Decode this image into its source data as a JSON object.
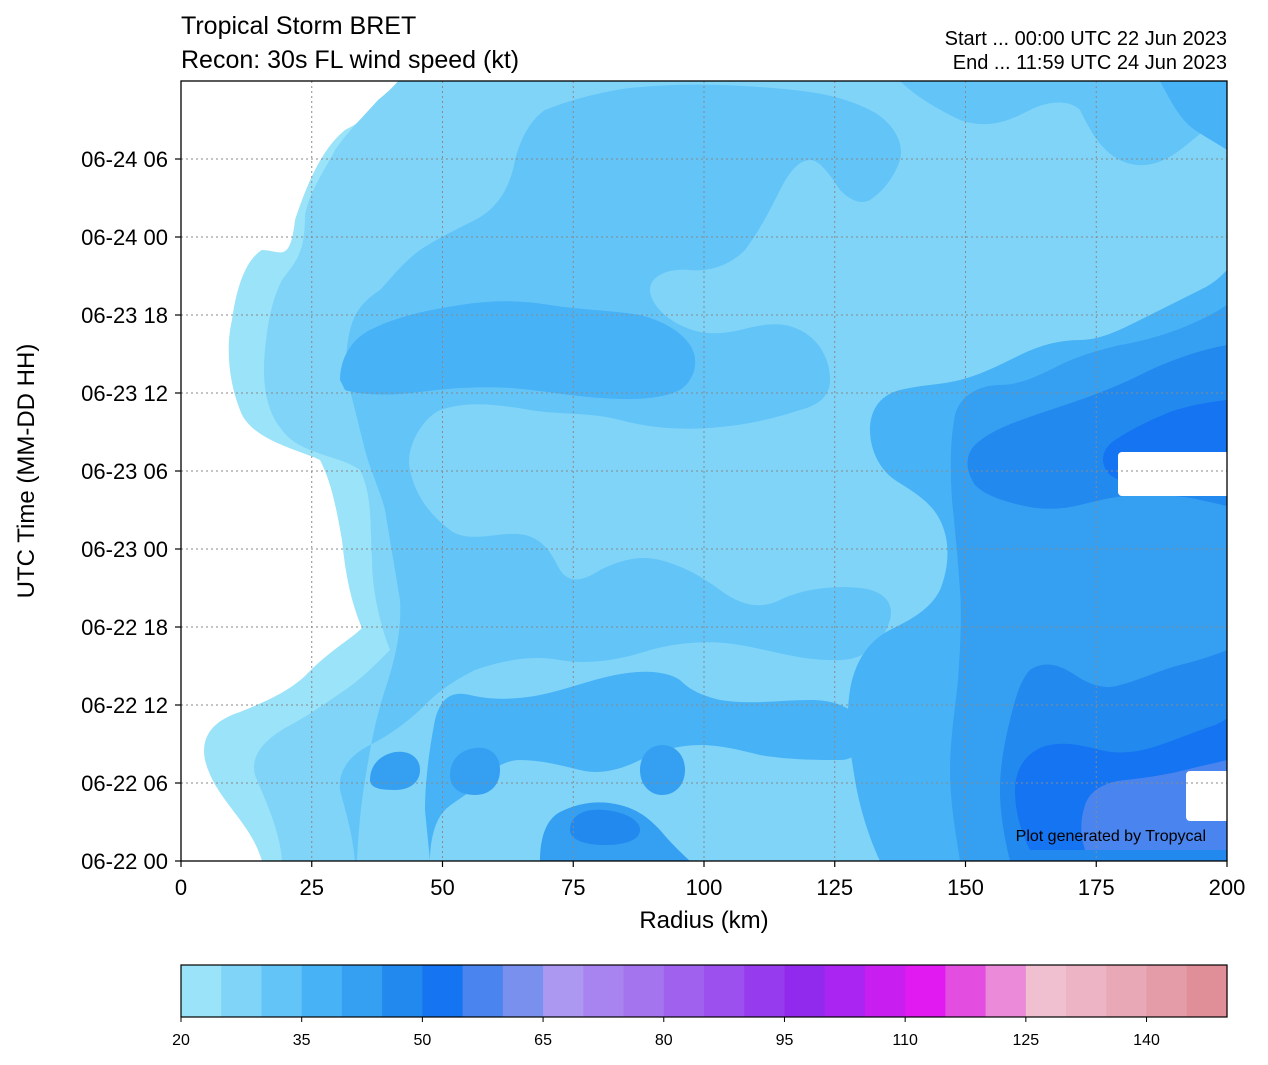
{
  "titles": {
    "left_line1": "Tropical Storm BRET",
    "left_line2": "Recon: 30s FL wind speed (kt)",
    "right_line1": "Start ... 00:00 UTC 22 Jun 2023",
    "right_line2": "End ... 11:59 UTC 24 Jun 2023"
  },
  "credit": "Plot generated by Tropycal",
  "chart_data": {
    "type": "heatmap",
    "xlabel": "Radius (km)",
    "ylabel": "UTC Time (MM-DD HH)",
    "xlim": [
      0,
      200
    ],
    "ylim_hours": [
      0,
      60
    ],
    "x_ticks": [
      0,
      25,
      50,
      75,
      100,
      125,
      150,
      175,
      200
    ],
    "y_ticks": [
      {
        "hour": 0,
        "label": "06-22 00"
      },
      {
        "hour": 6,
        "label": "06-22 06"
      },
      {
        "hour": 12,
        "label": "06-22 12"
      },
      {
        "hour": 18,
        "label": "06-22 18"
      },
      {
        "hour": 24,
        "label": "06-23 00"
      },
      {
        "hour": 30,
        "label": "06-23 06"
      },
      {
        "hour": 36,
        "label": "06-23 12"
      },
      {
        "hour": 42,
        "label": "06-23 18"
      },
      {
        "hour": 48,
        "label": "06-24 00"
      },
      {
        "hour": 54,
        "label": "06-24 06"
      }
    ],
    "grid": true,
    "colorbar": {
      "min": 20,
      "max": 150,
      "step": 5,
      "tick_values": [
        20,
        35,
        50,
        65,
        80,
        95,
        110,
        125,
        140
      ],
      "colors": [
        "#9be3f8",
        "#7fd4f8",
        "#63c4f8",
        "#47b2f6",
        "#35a0f2",
        "#2289ee",
        "#1474f2",
        "#4a84ee",
        "#7a90ee",
        "#ac98f0",
        "#a884f0",
        "#a474ee",
        "#a062ee",
        "#9c50ee",
        "#963cee",
        "#922aee",
        "#aa24f2",
        "#c81ef0",
        "#e01af0",
        "#e44ee0",
        "#ea8ad8",
        "#f0c0d0",
        "#ecb4c4",
        "#e8a8b6",
        "#e49ca8",
        "#e08e98"
      ]
    },
    "contour_levels_kt": [
      {
        "x": [
          0,
          5,
          10,
          15,
          20,
          25,
          30,
          40,
          50,
          60,
          75,
          100,
          125,
          150,
          165,
          175,
          185,
          195,
          200
        ],
        "t_hours": 3,
        "wind_kt": [
          null,
          20,
          25,
          25,
          30,
          35,
          35,
          40,
          40,
          40,
          40,
          40,
          40,
          45,
          50,
          50,
          55,
          55,
          null
        ]
      },
      {
        "x": [
          0,
          10,
          20,
          30,
          40,
          50,
          75,
          100,
          125,
          150,
          175,
          200
        ],
        "t_hours": 12,
        "wind_kt": [
          null,
          null,
          20,
          25,
          30,
          30,
          35,
          35,
          35,
          40,
          45,
          45
        ]
      },
      {
        "x": [
          0,
          10,
          20,
          30,
          40,
          50,
          75,
          100,
          125,
          150,
          175,
          200
        ],
        "t_hours": 24,
        "wind_kt": [
          null,
          null,
          null,
          20,
          25,
          30,
          30,
          30,
          35,
          40,
          40,
          40
        ]
      },
      {
        "x": [
          0,
          10,
          20,
          30,
          40,
          50,
          75,
          100,
          125,
          150,
          175,
          200
        ],
        "t_hours": 36,
        "wind_kt": [
          null,
          20,
          20,
          25,
          30,
          35,
          35,
          30,
          35,
          40,
          45,
          45
        ]
      },
      {
        "x": [
          0,
          10,
          20,
          30,
          40,
          50,
          75,
          100,
          125,
          150,
          175,
          200
        ],
        "t_hours": 48,
        "wind_kt": [
          null,
          null,
          20,
          25,
          30,
          30,
          35,
          35,
          35,
          35,
          40,
          40
        ]
      },
      {
        "x": [
          0,
          10,
          20,
          30,
          40,
          50,
          75,
          100,
          125,
          150,
          175,
          200
        ],
        "t_hours": 58,
        "wind_kt": [
          null,
          null,
          null,
          null,
          20,
          25,
          30,
          35,
          35,
          35,
          35,
          35
        ]
      }
    ]
  }
}
